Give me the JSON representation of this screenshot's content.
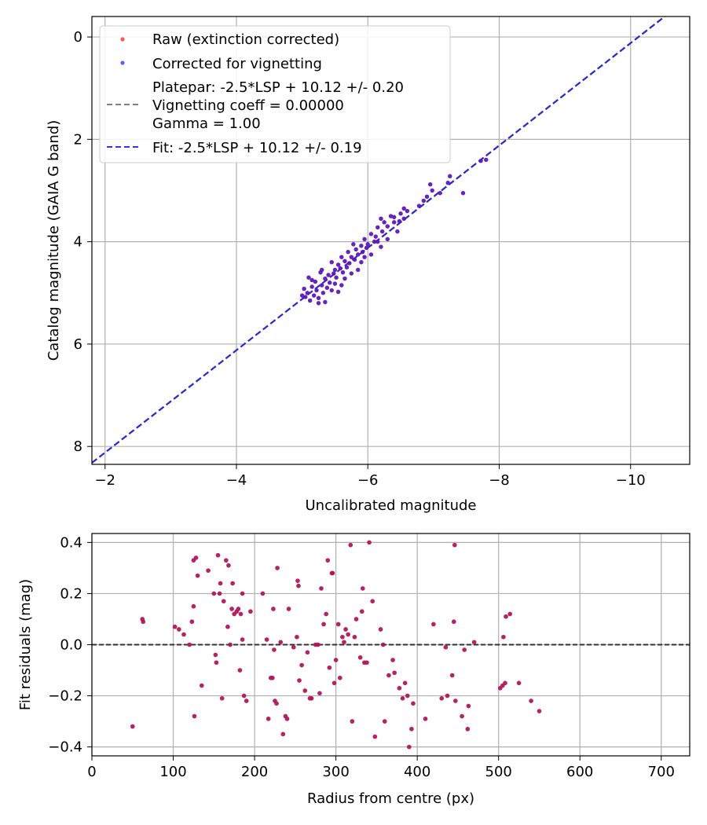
{
  "chart_data": [
    {
      "type": "scatter",
      "xlabel": "Uncalibrated magnitude",
      "ylabel": "Catalog magnitude (GAIA G band)",
      "xlim": [
        -1.8,
        -10.9
      ],
      "ylim": [
        -0.4,
        8.35
      ],
      "y_inverted": true,
      "grid": true,
      "legend_position": "top-left",
      "xticks": [
        -2,
        -4,
        -6,
        -8,
        -10
      ],
      "xtick_labels": [
        "−2",
        "−4",
        "−6",
        "−8",
        "−10"
      ],
      "yticks": [
        0,
        2,
        4,
        6,
        8
      ],
      "ytick_labels": [
        "0",
        "2",
        "4",
        "6",
        "8"
      ],
      "legend": [
        {
          "label": "Raw (extinction corrected)",
          "kind": "point",
          "color": "#ff5555"
        },
        {
          "label": "Corrected for vignetting",
          "kind": "point",
          "color": "#5f5fff"
        },
        {
          "label": "Platepar: -2.5*LSP + 10.12 +/- 0.20",
          "label_line2": "Vignetting coeff = 0.00000",
          "label_line3": "Gamma = 1.00",
          "kind": "line",
          "color": "#808080"
        },
        {
          "label": "Fit: -2.5*LSP + 10.12 +/- 0.19",
          "kind": "line",
          "color": "#3333ee"
        }
      ],
      "lines": [
        {
          "name": "Platepar",
          "slope": 1.0,
          "intercept": 10.12,
          "color": "#808080"
        },
        {
          "name": "Fit",
          "slope": 1.0,
          "intercept": 10.12,
          "color": "#2a2ad0"
        }
      ],
      "series": [
        {
          "name": "Corrected for vignetting",
          "color": "#4a10c8",
          "points": [
            [
              -7.8,
              2.4
            ],
            [
              -7.72,
              2.42
            ],
            [
              -7.45,
              3.05
            ],
            [
              -7.25,
              2.72
            ],
            [
              -7.22,
              2.85
            ],
            [
              -7.1,
              3.05
            ],
            [
              -6.95,
              2.88
            ],
            [
              -6.98,
              3.0
            ],
            [
              -6.9,
              3.12
            ],
            [
              -6.85,
              3.2
            ],
            [
              -6.78,
              3.3
            ],
            [
              -6.6,
              3.4
            ],
            [
              -6.55,
              3.35
            ],
            [
              -6.5,
              3.45
            ],
            [
              -6.48,
              3.6
            ],
            [
              -6.4,
              3.52
            ],
            [
              -6.35,
              3.5
            ],
            [
              -6.3,
              3.7
            ],
            [
              -6.25,
              3.62
            ],
            [
              -6.22,
              3.8
            ],
            [
              -6.2,
              3.55
            ],
            [
              -6.15,
              3.72
            ],
            [
              -6.12,
              3.9
            ],
            [
              -6.1,
              4.0
            ],
            [
              -6.05,
              3.85
            ],
            [
              -6.0,
              4.05
            ],
            [
              -5.98,
              4.12
            ],
            [
              -5.95,
              3.95
            ],
            [
              -5.92,
              4.2
            ],
            [
              -5.9,
              4.08
            ],
            [
              -5.85,
              4.25
            ],
            [
              -5.82,
              4.15
            ],
            [
              -5.8,
              4.35
            ],
            [
              -5.78,
              4.05
            ],
            [
              -5.75,
              4.3
            ],
            [
              -5.72,
              4.42
            ],
            [
              -5.7,
              4.2
            ],
            [
              -5.68,
              4.5
            ],
            [
              -5.65,
              4.38
            ],
            [
              -5.62,
              4.6
            ],
            [
              -5.6,
              4.3
            ],
            [
              -5.58,
              4.52
            ],
            [
              -5.55,
              4.45
            ],
            [
              -5.52,
              4.7
            ],
            [
              -5.5,
              4.55
            ],
            [
              -5.48,
              4.62
            ],
            [
              -5.45,
              4.4
            ],
            [
              -5.42,
              4.8
            ],
            [
              -5.4,
              4.65
            ],
            [
              -5.38,
              4.9
            ],
            [
              -5.35,
              4.72
            ],
            [
              -5.32,
              5.0
            ],
            [
              -5.3,
              4.85
            ],
            [
              -5.28,
              4.6
            ],
            [
              -5.25,
              5.1
            ],
            [
              -5.22,
              4.95
            ],
            [
              -5.2,
              4.78
            ],
            [
              -5.18,
              5.05
            ],
            [
              -5.15,
              4.88
            ],
            [
              -5.12,
              5.15
            ],
            [
              -5.1,
              4.7
            ],
            [
              -5.08,
              5.0
            ],
            [
              -5.05,
              5.08
            ],
            [
              -5.03,
              4.92
            ],
            [
              -5.0,
              5.05
            ],
            [
              -6.3,
              3.95
            ],
            [
              -6.05,
              4.25
            ],
            [
              -5.85,
              4.55
            ],
            [
              -5.65,
              4.72
            ],
            [
              -5.45,
              4.95
            ],
            [
              -5.25,
              5.2
            ],
            [
              -5.6,
              4.85
            ],
            [
              -5.9,
              4.4
            ],
            [
              -6.2,
              4.1
            ],
            [
              -6.45,
              3.8
            ],
            [
              -5.15,
              4.75
            ],
            [
              -5.35,
              5.18
            ],
            [
              -5.55,
              4.98
            ],
            [
              -5.75,
              4.62
            ],
            [
              -5.95,
              4.3
            ],
            [
              -6.15,
              4.0
            ],
            [
              -6.4,
              3.62
            ],
            [
              -6.55,
              3.55
            ],
            [
              -5.3,
              4.55
            ],
            [
              -5.5,
              4.82
            ]
          ]
        },
        {
          "name": "Fit residuals",
          "color": "#a8105a",
          "points": [
            [
              50,
              -0.32
            ],
            [
              62,
              0.1
            ],
            [
              63,
              0.09
            ],
            [
              102,
              0.07
            ],
            [
              107,
              0.06
            ],
            [
              113,
              0.04
            ],
            [
              120,
              0.0
            ],
            [
              123,
              0.09
            ],
            [
              125,
              0.33
            ],
            [
              125,
              0.15
            ],
            [
              126,
              -0.28
            ],
            [
              128,
              0.34
            ],
            [
              130,
              0.27
            ],
            [
              135,
              -0.16
            ],
            [
              143,
              0.29
            ],
            [
              150,
              0.2
            ],
            [
              152,
              -0.04
            ],
            [
              153,
              -0.07
            ],
            [
              155,
              0.35
            ],
            [
              157,
              0.2
            ],
            [
              158,
              0.24
            ],
            [
              160,
              -0.21
            ],
            [
              162,
              0.17
            ],
            [
              165,
              0.33
            ],
            [
              167,
              0.07
            ],
            [
              168,
              0.31
            ],
            [
              170,
              0.0
            ],
            [
              172,
              0.14
            ],
            [
              173,
              0.24
            ],
            [
              175,
              0.12
            ],
            [
              178,
              0.13
            ],
            [
              180,
              0.14
            ],
            [
              182,
              -0.1
            ],
            [
              183,
              0.12
            ],
            [
              185,
              0.2
            ],
            [
              185,
              0.02
            ],
            [
              187,
              -0.2
            ],
            [
              190,
              -0.22
            ],
            [
              195,
              0.13
            ],
            [
              210,
              0.2
            ],
            [
              215,
              0.02
            ],
            [
              217,
              -0.29
            ],
            [
              220,
              -0.13
            ],
            [
              222,
              -0.13
            ],
            [
              223,
              0.14
            ],
            [
              224,
              -0.02
            ],
            [
              225,
              -0.22
            ],
            [
              227,
              -0.23
            ],
            [
              228,
              0.3
            ],
            [
              232,
              0.01
            ],
            [
              235,
              -0.35
            ],
            [
              238,
              -0.28
            ],
            [
              240,
              -0.29
            ],
            [
              242,
              0.14
            ],
            [
              248,
              -0.01
            ],
            [
              252,
              0.03
            ],
            [
              253,
              0.25
            ],
            [
              254,
              0.23
            ],
            [
              255,
              -0.14
            ],
            [
              258,
              -0.08
            ],
            [
              262,
              -0.18
            ],
            [
              265,
              -0.03
            ],
            [
              268,
              -0.21
            ],
            [
              270,
              -0.21
            ],
            [
              275,
              0.0
            ],
            [
              278,
              0.0
            ],
            [
              280,
              -0.19
            ],
            [
              282,
              0.22
            ],
            [
              285,
              0.08
            ],
            [
              288,
              0.12
            ],
            [
              290,
              0.33
            ],
            [
              292,
              -0.09
            ],
            [
              295,
              0.28
            ],
            [
              296,
              0.28
            ],
            [
              298,
              -0.15
            ],
            [
              300,
              -0.06
            ],
            [
              303,
              0.08
            ],
            [
              305,
              -0.13
            ],
            [
              308,
              0.03
            ],
            [
              310,
              0.01
            ],
            [
              312,
              0.06
            ],
            [
              315,
              0.04
            ],
            [
              318,
              0.39
            ],
            [
              320,
              -0.3
            ],
            [
              323,
              0.03
            ],
            [
              325,
              0.1
            ],
            [
              330,
              -0.05
            ],
            [
              332,
              0.13
            ],
            [
              333,
              0.22
            ],
            [
              335,
              -0.07
            ],
            [
              338,
              -0.07
            ],
            [
              341,
              0.4
            ],
            [
              345,
              0.17
            ],
            [
              348,
              -0.36
            ],
            [
              355,
              0.06
            ],
            [
              358,
              0.0
            ],
            [
              360,
              -0.3
            ],
            [
              365,
              -0.12
            ],
            [
              370,
              -0.06
            ],
            [
              372,
              -0.11
            ],
            [
              378,
              -0.17
            ],
            [
              382,
              -0.21
            ],
            [
              385,
              -0.15
            ],
            [
              388,
              -0.2
            ],
            [
              390,
              -0.4
            ],
            [
              393,
              -0.33
            ],
            [
              395,
              -0.23
            ],
            [
              410,
              -0.29
            ],
            [
              420,
              0.08
            ],
            [
              430,
              -0.21
            ],
            [
              435,
              -0.01
            ],
            [
              437,
              -0.2
            ],
            [
              443,
              -0.12
            ],
            [
              445,
              0.09
            ],
            [
              446,
              0.39
            ],
            [
              447,
              -0.22
            ],
            [
              455,
              -0.28
            ],
            [
              458,
              -0.02
            ],
            [
              462,
              -0.33
            ],
            [
              463,
              -0.24
            ],
            [
              470,
              0.01
            ],
            [
              502,
              -0.17
            ],
            [
              505,
              -0.16
            ],
            [
              506,
              0.03
            ],
            [
              508,
              -0.15
            ],
            [
              509,
              0.11
            ],
            [
              514,
              0.12
            ],
            [
              525,
              -0.15
            ],
            [
              540,
              -0.22
            ],
            [
              550,
              -0.26
            ]
          ]
        }
      ]
    },
    {
      "type": "scatter",
      "xlabel": "Radius from centre (px)",
      "ylabel": "Fit residuals (mag)",
      "xlim": [
        0,
        735
      ],
      "ylim": [
        -0.435,
        0.435
      ],
      "grid": true,
      "xticks": [
        0,
        100,
        200,
        300,
        400,
        500,
        600,
        700
      ],
      "xtick_labels": [
        "0",
        "100",
        "200",
        "300",
        "400",
        "500",
        "600",
        "700"
      ],
      "yticks": [
        0.4,
        0.2,
        0.0,
        -0.2,
        -0.4
      ],
      "ytick_labels": [
        "0.4",
        "0.2",
        "0.0",
        "−0.2",
        "−0.4"
      ],
      "zero_line": true
    }
  ]
}
